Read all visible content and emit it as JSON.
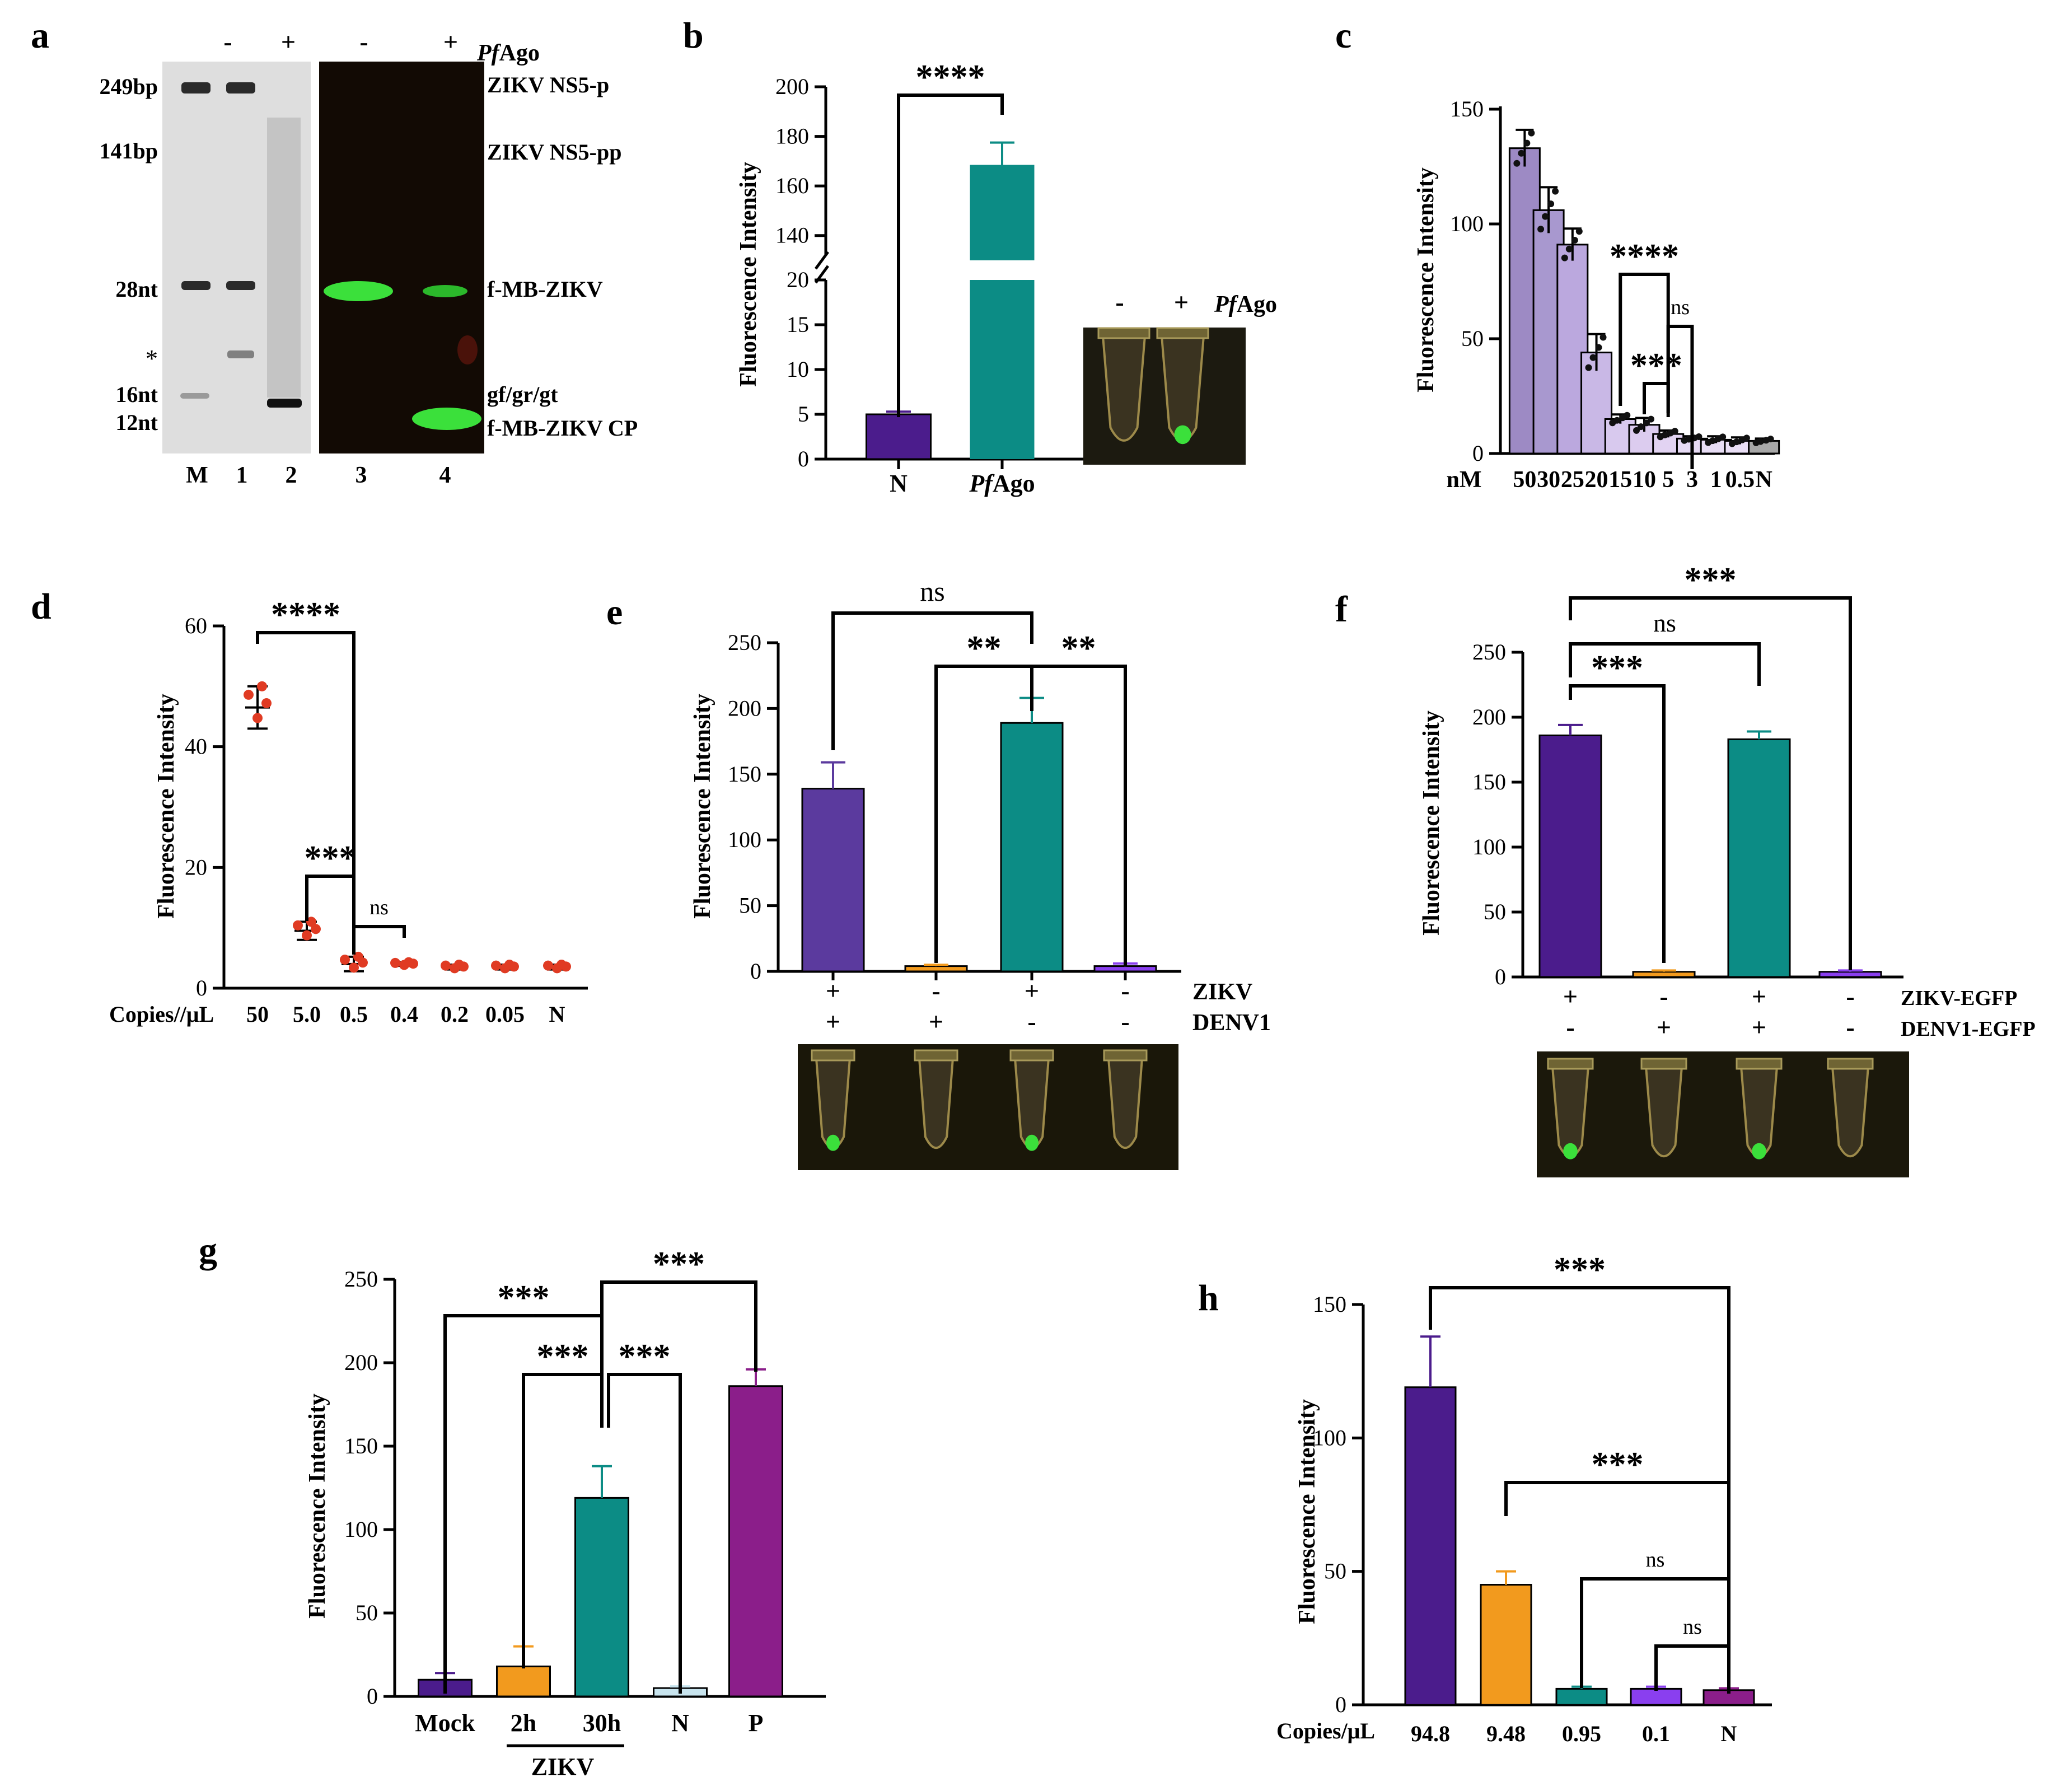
{
  "panel_labels": [
    "a",
    "b",
    "c",
    "d",
    "e",
    "f",
    "g",
    "h"
  ],
  "colors": {
    "purple": "#5B3A9E",
    "teal": "#0C8C85",
    "orange": "#F29A1E",
    "violet": "#8B1E8A",
    "gel_green": "#3BE03B",
    "dark_purple": "#4B1C8C",
    "bright_violet": "#8A3FEF",
    "lavender": "#9D8AC4",
    "light_lav": "#C9B8E6",
    "grey": "#A8A8A8",
    "red_dot": "#E03B23"
  },
  "gel": {
    "lane_top_signs": [
      "-",
      "+",
      "-",
      "+"
    ],
    "protein_label_italic": "Pf",
    "protein_label_rest": "Ago",
    "left_markers": [
      "249bp",
      "141bp",
      "28nt",
      "*",
      "16nt",
      "12nt"
    ],
    "right_labels": [
      "ZIKV NS5-p",
      "ZIKV NS5-pp",
      "f-MB-ZIKV",
      "gf/gr/gt",
      "f-MB-ZIKV CP"
    ],
    "lanes": [
      "M",
      "1",
      "2",
      "3",
      "4"
    ]
  },
  "chart_data": [
    {
      "panel": "b",
      "type": "bar",
      "title": "",
      "ylabel": "Fluorescence Intensity",
      "categories": [
        "N",
        "PfAgo"
      ],
      "category_labels": [
        {
          "plain": "N"
        },
        {
          "italic": "Pf",
          "rest": "Ago"
        }
      ],
      "values": [
        5,
        168.5
      ],
      "errors": [
        0.3,
        9
      ],
      "lower_ylim": [
        0,
        20
      ],
      "lower_ticks": [
        "0",
        "5",
        "10",
        "15",
        "20"
      ],
      "upper_ylim": [
        130,
        200
      ],
      "upper_ticks": [
        "140",
        "160",
        "180",
        "200"
      ],
      "broken_axis": true,
      "significance": [
        {
          "pair": [
            "N",
            "PfAgo"
          ],
          "label": "****"
        }
      ],
      "tube_labels": [
        "-",
        "+"
      ],
      "tube_protein_italic": "Pf",
      "tube_protein_rest": "Ago"
    },
    {
      "panel": "c",
      "type": "bar",
      "ylabel": "Fluorescence Intensity",
      "xlabel": "nM",
      "categories": [
        "50",
        "30",
        "25",
        "20",
        "15",
        "10",
        "5",
        "3",
        "1",
        "0.5",
        "N"
      ],
      "values": [
        133,
        106,
        91,
        44,
        15,
        12.5,
        8.5,
        6.5,
        6,
        5.5,
        5.5
      ],
      "errors": [
        8,
        10,
        7,
        8,
        2,
        3,
        1.5,
        1,
        1.5,
        1.5,
        1
      ],
      "ylim": [
        0,
        150
      ],
      "yticks": [
        "0",
        "50",
        "100",
        "150"
      ],
      "significance": [
        {
          "pair": [
            "15",
            "5"
          ],
          "label": "****"
        },
        {
          "pair": [
            "10",
            "5"
          ],
          "label": "***"
        },
        {
          "pair": [
            "5",
            "3"
          ],
          "label": "ns"
        }
      ]
    },
    {
      "panel": "d",
      "type": "scatter",
      "ylabel": "Fluorescence Intensity",
      "xlabel": "Copies//μL",
      "categories": [
        "50",
        "5.0",
        "0.5",
        "0.4",
        "0.2",
        "0.05",
        "N"
      ],
      "means": [
        46.5,
        9.5,
        4,
        4,
        3.5,
        3.5,
        3.5
      ],
      "errors": [
        3.5,
        1.5,
        1.2,
        0.3,
        0.4,
        0.4,
        0.4
      ],
      "ylim": [
        0,
        60
      ],
      "yticks": [
        "0",
        "20",
        "40",
        "60"
      ],
      "significance": [
        {
          "pair": [
            "50",
            "0.5"
          ],
          "label": "****"
        },
        {
          "pair": [
            "5.0",
            "0.5"
          ],
          "label": "***"
        },
        {
          "pair": [
            "0.5",
            "0.4"
          ],
          "label": "ns"
        }
      ]
    },
    {
      "panel": "e",
      "type": "bar",
      "ylabel": "Fluorescence Intensity",
      "row1_name": "ZIKV",
      "row1": [
        "+",
        "-",
        "+",
        "-"
      ],
      "row2_name": "DENV1",
      "row2": [
        "+",
        "+",
        "-",
        "-"
      ],
      "values": [
        139,
        4,
        189,
        4
      ],
      "errors": [
        20,
        1,
        19,
        2
      ],
      "ylim": [
        0,
        250
      ],
      "yticks": [
        "0",
        "50",
        "100",
        "150",
        "200",
        "250"
      ],
      "significance": [
        {
          "pair": [
            0,
            2
          ],
          "label": "ns"
        },
        {
          "pair": [
            1,
            2
          ],
          "label": "**"
        },
        {
          "pair": [
            2,
            3
          ],
          "label": "**"
        }
      ]
    },
    {
      "panel": "f",
      "type": "bar",
      "ylabel": "Fluorescence Intensity",
      "row1_name": "ZIKV-EGFP",
      "row1": [
        "+",
        "-",
        "+",
        "-"
      ],
      "row2_name": "DENV1-EGFP",
      "row2": [
        "-",
        "+",
        "+",
        "-"
      ],
      "values": [
        186,
        4,
        183,
        4
      ],
      "errors": [
        8,
        1,
        6,
        1
      ],
      "ylim": [
        0,
        250
      ],
      "yticks": [
        "0",
        "50",
        "100",
        "150",
        "200",
        "250"
      ],
      "significance": [
        {
          "pair": [
            0,
            3
          ],
          "label": "***"
        },
        {
          "pair": [
            0,
            2
          ],
          "label": "ns"
        },
        {
          "pair": [
            0,
            1
          ],
          "label": "***"
        }
      ]
    },
    {
      "panel": "g",
      "type": "bar",
      "ylabel": "Fluorescence Intensity",
      "categories": [
        "Mock",
        "2h",
        "30h",
        "N",
        "P"
      ],
      "group_label": "ZIKV",
      "values": [
        10,
        18,
        119,
        5,
        186
      ],
      "errors": [
        4,
        12,
        19,
        1,
        10
      ],
      "ylim": [
        0,
        250
      ],
      "yticks": [
        "0",
        "50",
        "100",
        "150",
        "200",
        "250"
      ],
      "significance": [
        {
          "pair": [
            "Mock",
            "30h"
          ],
          "label": "***"
        },
        {
          "pair": [
            "30h",
            "P"
          ],
          "label": "***"
        },
        {
          "pair": [
            "2h",
            "30h"
          ],
          "label": "***"
        },
        {
          "pair": [
            "30h",
            "N"
          ],
          "label": "***"
        }
      ]
    },
    {
      "panel": "h",
      "type": "bar",
      "ylabel": "Fluorescence Intensity",
      "xlabel": "Copies/μL",
      "categories": [
        "94.8",
        "9.48",
        "0.95",
        "0.1",
        "N"
      ],
      "values": [
        119,
        45,
        6,
        6,
        5.5
      ],
      "errors": [
        19,
        5,
        0.8,
        0.8,
        0.7
      ],
      "ylim": [
        0,
        150
      ],
      "yticks": [
        "0",
        "50",
        "100",
        "150"
      ],
      "significance": [
        {
          "pair": [
            "94.8",
            "N"
          ],
          "label": "***"
        },
        {
          "pair": [
            "9.48",
            "N"
          ],
          "label": "***"
        },
        {
          "pair": [
            "0.95",
            "N"
          ],
          "label": "ns"
        },
        {
          "pair": [
            "0.1",
            "N"
          ],
          "label": "ns"
        }
      ]
    }
  ]
}
